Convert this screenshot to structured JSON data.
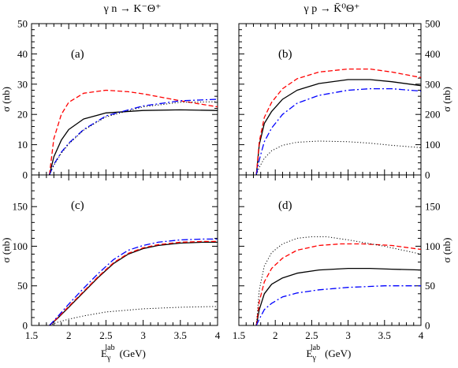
{
  "figure": {
    "top_labels": [
      "γ n → K⁻Θ⁺",
      "γ p → K̄⁰Θ⁺"
    ],
    "xlabel_text": "E",
    "xlabel_sub": "γ",
    "xlabel_sup": "lab",
    "xlabel_unit": "(GeV)",
    "ylabel": "σ (nb)"
  },
  "colors": {
    "series_0": "#000000",
    "series_1": "#ff0000",
    "series_2": "#0000ff",
    "series_3": "#000000"
  },
  "chart_data": [
    {
      "type": "line",
      "panel_label": "(a)",
      "xlim": [
        1.5,
        4
      ],
      "ylim": [
        0,
        50
      ],
      "xticks": [
        "1.5",
        "2",
        "2.5",
        "3",
        "3.5",
        "4"
      ],
      "yticks": [
        "0",
        "10",
        "20",
        "30",
        "40",
        "50"
      ],
      "ylabel_side": "left",
      "series": [
        {
          "style": "solid",
          "x": [
            1.74,
            1.8,
            1.9,
            2.0,
            2.2,
            2.5,
            3.0,
            3.5,
            4.0
          ],
          "y": [
            0,
            6,
            11.5,
            15,
            18.5,
            20.5,
            21.3,
            21.5,
            21.3
          ]
        },
        {
          "style": "dashed",
          "x": [
            1.74,
            1.8,
            1.9,
            2.0,
            2.2,
            2.5,
            2.8,
            3.0,
            3.5,
            4.0
          ],
          "y": [
            0,
            12,
            20,
            24,
            27,
            28,
            27.5,
            26.8,
            24.5,
            22.5
          ]
        },
        {
          "style": "dashdot",
          "x": [
            1.74,
            1.8,
            1.9,
            2.0,
            2.2,
            2.5,
            3.0,
            3.5,
            4.0
          ],
          "y": [
            0,
            3.5,
            7.5,
            10.5,
            15,
            19.5,
            22.8,
            24.5,
            25
          ]
        },
        {
          "style": "dotted",
          "x": [
            1.74,
            1.8,
            1.9,
            2.0,
            2.2,
            2.5,
            3.0,
            3.5,
            4.0
          ],
          "y": [
            0,
            3.2,
            7.2,
            10.2,
            14.8,
            19.2,
            22.5,
            24,
            24.2
          ]
        }
      ]
    },
    {
      "type": "line",
      "panel_label": "(b)",
      "xlim": [
        1.5,
        4
      ],
      "ylim": [
        0,
        500
      ],
      "xticks": [
        "1.5",
        "2",
        "2.5",
        "3",
        "3.5",
        "4"
      ],
      "yticks": [
        "0",
        "100",
        "200",
        "300",
        "400",
        "500"
      ],
      "ylabel_side": "right",
      "series": [
        {
          "style": "solid",
          "x": [
            1.74,
            1.78,
            1.85,
            1.95,
            2.1,
            2.3,
            2.6,
            3.0,
            3.3,
            3.6,
            4.0
          ],
          "y": [
            0,
            100,
            170,
            210,
            250,
            280,
            302,
            315,
            315,
            308,
            295
          ]
        },
        {
          "style": "dashed",
          "x": [
            1.74,
            1.78,
            1.85,
            1.95,
            2.1,
            2.3,
            2.6,
            3.0,
            3.3,
            3.6,
            4.0
          ],
          "y": [
            0,
            110,
            190,
            240,
            285,
            318,
            340,
            350,
            350,
            340,
            322
          ]
        },
        {
          "style": "dashdot",
          "x": [
            1.74,
            1.78,
            1.85,
            1.95,
            2.1,
            2.3,
            2.6,
            3.0,
            3.3,
            3.6,
            4.0
          ],
          "y": [
            0,
            50,
            110,
            155,
            200,
            237,
            263,
            280,
            285,
            285,
            277
          ]
        },
        {
          "style": "dotted",
          "x": [
            1.74,
            1.78,
            1.85,
            1.95,
            2.1,
            2.3,
            2.6,
            3.0,
            3.3,
            3.6,
            4.0
          ],
          "y": [
            0,
            25,
            55,
            80,
            98,
            108,
            112,
            110,
            105,
            98,
            90
          ]
        }
      ]
    },
    {
      "type": "line",
      "panel_label": "(c)",
      "xlim": [
        1.5,
        4
      ],
      "ylim": [
        0,
        190
      ],
      "xticks": [
        "1.5",
        "2",
        "2.5",
        "3",
        "3.5",
        "4"
      ],
      "yticks": [
        "0",
        "50",
        "100",
        "150"
      ],
      "ylabel_side": "left",
      "series": [
        {
          "style": "solid",
          "x": [
            1.74,
            1.85,
            2.0,
            2.2,
            2.4,
            2.6,
            2.8,
            3.0,
            3.2,
            3.5,
            3.8,
            4.0
          ],
          "y": [
            0,
            9,
            23,
            42,
            61,
            78,
            90,
            97,
            101,
            104,
            105,
            105
          ]
        },
        {
          "style": "dashed",
          "x": [
            1.74,
            1.85,
            2.0,
            2.2,
            2.4,
            2.6,
            2.8,
            3.0,
            3.2,
            3.5,
            3.8,
            4.0
          ],
          "y": [
            0,
            9.5,
            24,
            43,
            62,
            79,
            91,
            98,
            102,
            105,
            106,
            106
          ]
        },
        {
          "style": "dashdot",
          "x": [
            1.74,
            1.85,
            2.0,
            2.2,
            2.4,
            2.6,
            2.8,
            3.0,
            3.2,
            3.5,
            3.8,
            4.0
          ],
          "y": [
            0,
            11,
            27,
            47,
            66,
            83,
            95,
            101,
            105,
            108,
            109,
            109
          ]
        },
        {
          "style": "dotted",
          "x": [
            1.74,
            1.85,
            2.0,
            2.2,
            2.5,
            3.0,
            3.5,
            4.0
          ],
          "y": [
            0,
            4,
            8,
            12,
            17,
            21,
            23,
            24
          ]
        }
      ]
    },
    {
      "type": "line",
      "panel_label": "(d)",
      "xlim": [
        1.5,
        4
      ],
      "ylim": [
        0,
        190
      ],
      "xticks": [
        "1.5",
        "2",
        "2.5",
        "3",
        "3.5",
        "4"
      ],
      "yticks": [
        "0",
        "50",
        "100",
        "150"
      ],
      "ylabel_side": "right",
      "series": [
        {
          "style": "solid",
          "x": [
            1.74,
            1.78,
            1.85,
            1.95,
            2.1,
            2.3,
            2.6,
            3.0,
            3.3,
            3.6,
            4.0
          ],
          "y": [
            0,
            20,
            40,
            52,
            60,
            66,
            70,
            72,
            72,
            71,
            70
          ]
        },
        {
          "style": "dashed",
          "x": [
            1.74,
            1.78,
            1.85,
            1.95,
            2.1,
            2.3,
            2.6,
            2.9,
            3.2,
            3.6,
            4.0
          ],
          "y": [
            0,
            30,
            55,
            72,
            85,
            95,
            101,
            103,
            103,
            101,
            96
          ]
        },
        {
          "style": "dashdot",
          "x": [
            1.74,
            1.78,
            1.85,
            1.95,
            2.1,
            2.3,
            2.6,
            3.0,
            3.5,
            4.0
          ],
          "y": [
            0,
            8,
            20,
            28,
            36,
            41,
            45,
            48,
            50,
            50
          ]
        },
        {
          "style": "dotted",
          "x": [
            1.74,
            1.78,
            1.85,
            1.95,
            2.1,
            2.3,
            2.5,
            2.7,
            3.0,
            3.5,
            4.0
          ],
          "y": [
            0,
            45,
            75,
            92,
            103,
            110,
            112,
            112,
            108,
            100,
            90
          ]
        }
      ]
    }
  ]
}
